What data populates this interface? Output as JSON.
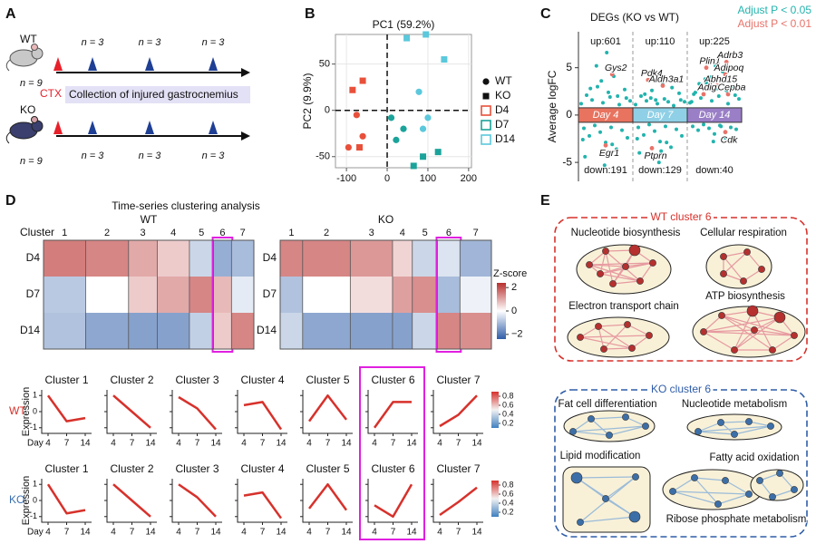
{
  "panel_labels": [
    "A",
    "B",
    "C",
    "D",
    "E"
  ],
  "timeline": {
    "groups": [
      {
        "name": "WT",
        "n": "n = 9",
        "timepoints": [
          "n = 3",
          "n = 3",
          "n = 3"
        ]
      },
      {
        "name": "KO",
        "n": "n = 9",
        "timepoints": [
          "n = 3",
          "n = 3",
          "n = 3"
        ]
      }
    ],
    "injury": "CTX",
    "collection": "Collection of injured gastrocnemius"
  },
  "chart_data": [
    {
      "type": "scatter",
      "title": "PC1 (59.2%)",
      "y_label": "PC2 (9.9%)",
      "xlim": [
        -127,
        207
      ],
      "xticks": [
        -100,
        0,
        100,
        200
      ],
      "ylim": [
        -62,
        82
      ],
      "yticks": [
        -50,
        0,
        50
      ],
      "grid": true,
      "markers": [
        "circle",
        "square"
      ],
      "marker_names": [
        "WT",
        "KO"
      ],
      "series": [
        {
          "name": "D4",
          "color": "#e8503a",
          "groups": [
            {
              "x": [
                -75,
                -95,
                -60
              ],
              "y": [
                -5,
                -40,
                -28
              ]
            },
            {
              "x": [
                -60,
                -85,
                -68
              ],
              "y": [
                32,
                22,
                -40
              ]
            }
          ]
        },
        {
          "name": "D7",
          "color": "#1aa39a",
          "groups": [
            {
              "x": [
                10,
                22,
                40
              ],
              "y": [
                -8,
                -32,
                -20
              ]
            },
            {
              "x": [
                65,
                88,
                125
              ],
              "y": [
                -60,
                -50,
                -45
              ]
            }
          ]
        },
        {
          "name": "D14",
          "color": "#5bc8dc",
          "groups": [
            {
              "x": [
                78,
                100,
                88
              ],
              "y": [
                20,
                -8,
                -20
              ]
            },
            {
              "x": [
                48,
                95,
                140
              ],
              "y": [
                78,
                82,
                55
              ]
            }
          ]
        }
      ]
    },
    {
      "type": "scatter",
      "title": "DEGs (KO vs WT)",
      "y_label": "Average logFC",
      "xlim": [
        0,
        3
      ],
      "ylim": [
        -7,
        8.8
      ],
      "yticks": [
        -5,
        0,
        5
      ],
      "categories": [
        "Day 4",
        "Day 7",
        "Day 14"
      ],
      "category_colors": [
        "#e8735f",
        "#8fd0e6",
        "#9a7fc7"
      ],
      "up_labels": [
        "up:601",
        "up:110",
        "up:225"
      ],
      "down_labels": [
        "down:191",
        "down:129",
        "down:40"
      ],
      "series": [
        {
          "name": "Adjust P < 0.05",
          "color": "#22b3ad",
          "x": [
            0.05,
            0.1,
            0.15,
            0.2,
            0.25,
            0.3,
            0.35,
            0.4,
            0.45,
            0.5,
            0.55,
            0.6,
            0.65,
            0.7,
            0.75,
            0.8,
            0.85,
            0.9,
            0.95,
            0.12,
            0.33,
            0.48,
            0.58,
            0.72,
            0.08,
            0.42,
            0.62,
            0.88,
            0.22,
            0.52,
            1.05,
            1.1,
            1.15,
            1.2,
            1.25,
            1.3,
            1.35,
            1.4,
            1.45,
            1.5,
            1.55,
            1.6,
            1.65,
            1.7,
            1.75,
            1.8,
            1.85,
            1.9,
            1.95,
            1.12,
            1.33,
            1.48,
            1.58,
            1.72,
            1.08,
            1.42,
            1.62,
            1.88,
            1.22,
            1.52,
            2.05,
            2.1,
            2.15,
            2.2,
            2.25,
            2.3,
            2.35,
            2.4,
            2.45,
            2.5,
            2.55,
            2.6,
            2.65,
            2.7,
            2.75,
            2.8,
            2.85,
            2.9,
            2.95,
            2.12,
            2.33,
            2.48,
            2.58,
            2.72,
            2.08,
            2.42,
            2.62,
            2.88,
            2.22,
            2.52
          ],
          "y": [
            1.2,
            -1.4,
            2.1,
            -2.2,
            1.6,
            -1.1,
            3.0,
            -1.8,
            1.3,
            -2.9,
            2.4,
            -1.3,
            4.1,
            -3.6,
            1.1,
            -1.6,
            2.7,
            -2.4,
            1.5,
            -4.4,
            5.2,
            -5.3,
            1.9,
            2.0,
            -2.6,
            3.6,
            -3.1,
            1.8,
            2.8,
            6.6,
            1.1,
            -1.3,
            2.0,
            -2.1,
            1.5,
            -1.0,
            2.6,
            -1.7,
            1.2,
            -2.8,
            3.2,
            -1.2,
            1.4,
            -3.4,
            1.0,
            -1.5,
            2.3,
            -2.2,
            1.4,
            -4.0,
            1.8,
            -5.0,
            1.7,
            2.9,
            -2.5,
            1.6,
            -2.9,
            1.6,
            2.2,
            -3.8,
            1.3,
            -1.2,
            2.4,
            -1.6,
            1.8,
            -1.0,
            3.4,
            -1.4,
            1.5,
            -2.0,
            2.8,
            -1.1,
            4.6,
            -2.4,
            1.2,
            -1.3,
            3.0,
            -1.5,
            1.7,
            2.2,
            3.8,
            -2.8,
            2.0,
            2.6,
            1.4,
            4.0,
            -1.2,
            2.1,
            3.3,
            5.2
          ]
        },
        {
          "name": "Adjust P < 0.01",
          "color": "#e8736a",
          "x": [
            0.62,
            1.28,
            1.55,
            2.35,
            2.72,
            2.7,
            2.55,
            2.3,
            2.75,
            2.7,
            0.5,
            1.35
          ],
          "y": [
            4.3,
            3.7,
            3.1,
            5.0,
            5.6,
            4.3,
            3.1,
            2.2,
            2.2,
            -1.8,
            -3.2,
            -3.5
          ],
          "labels": [
            "Gys2",
            "Pdk4",
            "Aldh3a1",
            "Plin1",
            "Adrb3",
            "Adipoq",
            "Abhd15",
            "Adig",
            "Cepba",
            "Cdk",
            "Egr1",
            "Ptprn"
          ]
        }
      ]
    },
    {
      "type": "heatmap",
      "title": "Time-series clustering analysis",
      "x_label": "Cluster",
      "categories": [
        "1",
        "2",
        "3",
        "4",
        "5",
        "6",
        "7"
      ],
      "rows": [
        "D4",
        "D7",
        "D14"
      ],
      "zlim": [
        -2.4,
        2.4
      ],
      "zticks": [
        2,
        0,
        {
          "value": -2,
          "label": "−2"
        }
      ],
      "z_label": "Z-score",
      "colors": [
        "#2f5da8",
        "#ffffff",
        "#b8302e"
      ],
      "highlight": "6",
      "panels": [
        {
          "name": "WT",
          "cluster_sizes": [
            47,
            48,
            32,
            36,
            27,
            20,
            25
          ],
          "values": [
            [
              1.5,
              1.4,
              1.0,
              0.6,
              -0.6,
              -1.2,
              -1.0
            ],
            [
              -0.8,
              0,
              0.6,
              1.0,
              1.4,
              0.8,
              -0.3
            ],
            [
              -0.9,
              -1.3,
              -1.4,
              -1.4,
              -0.7,
              0.6,
              1.4
            ]
          ]
        },
        {
          "name": "KO",
          "cluster_sizes": [
            25,
            53,
            47,
            22,
            28,
            25,
            35
          ],
          "values": [
            [
              1.4,
              1.4,
              1.2,
              0.5,
              -0.6,
              -0.4,
              -1.1
            ],
            [
              -0.9,
              0,
              0.4,
              1.1,
              1.3,
              -1.0,
              -0.2
            ],
            [
              -0.6,
              -1.3,
              -1.4,
              -1.4,
              -0.6,
              1.4,
              1.3
            ]
          ]
        }
      ]
    },
    {
      "type": "line",
      "categories": [
        "4",
        "7",
        "14"
      ],
      "x_label": "Day",
      "y_label": "Expression",
      "ylim": [
        -1.35,
        1.35
      ],
      "yticks": [
        -1,
        0,
        1
      ],
      "color": "#d7312b",
      "colorbar_colors": [
        "#3f7fbf",
        "#f2f2f2",
        "#d7312b"
      ],
      "clim": [
        0.1,
        0.9
      ],
      "cticks": [
        0.2,
        0.4,
        0.6,
        0.8
      ],
      "highlight": "Cluster 6",
      "rows": [
        {
          "name": "WT",
          "name_color": "#d7312b",
          "panels": [
            {
              "title": "Cluster 1",
              "values": [
                1.0,
                -0.6,
                -0.4
              ]
            },
            {
              "title": "Cluster 2",
              "values": [
                1.0,
                0,
                -1.0
              ]
            },
            {
              "title": "Cluster 3",
              "values": [
                0.9,
                0.2,
                -1.1
              ]
            },
            {
              "title": "Cluster 4",
              "values": [
                0.4,
                0.6,
                -1.1
              ]
            },
            {
              "title": "Cluster 5",
              "values": [
                -0.6,
                1.0,
                -0.5
              ]
            },
            {
              "title": "Cluster 6",
              "values": [
                -1.0,
                0.6,
                0.6
              ]
            },
            {
              "title": "Cluster 7",
              "values": [
                -0.9,
                -0.2,
                1.0
              ]
            }
          ]
        },
        {
          "name": "KO",
          "name_color": "#3a6fb0",
          "panels": [
            {
              "title": "Cluster 1",
              "values": [
                1.0,
                -0.8,
                -0.6
              ]
            },
            {
              "title": "Cluster 2",
              "values": [
                1.0,
                0,
                -1.0
              ]
            },
            {
              "title": "Cluster 3",
              "values": [
                1.0,
                0.2,
                -1.0
              ]
            },
            {
              "title": "Cluster 4",
              "values": [
                0.3,
                0.5,
                -1.1
              ]
            },
            {
              "title": "Cluster 5",
              "values": [
                -0.5,
                1.0,
                -0.6
              ]
            },
            {
              "title": "Cluster 6",
              "values": [
                -0.3,
                -1.0,
                1.0
              ]
            },
            {
              "title": "Cluster 7",
              "values": [
                -0.9,
                -0.1,
                0.8
              ]
            }
          ]
        }
      ]
    }
  ],
  "networks": {
    "wt": {
      "title": "WT cluster 6",
      "modules": [
        "Nucleotide biosynthesis",
        "Cellular respiration",
        "Electron transport chain",
        "ATP biosynthesis"
      ]
    },
    "ko": {
      "title": "KO cluster 6",
      "modules": [
        "Fat cell differentiation",
        "Nucleotide metabolism",
        "Lipid modification",
        "Fatty acid oxidation",
        "Ribose phosphate metabolism"
      ]
    }
  }
}
